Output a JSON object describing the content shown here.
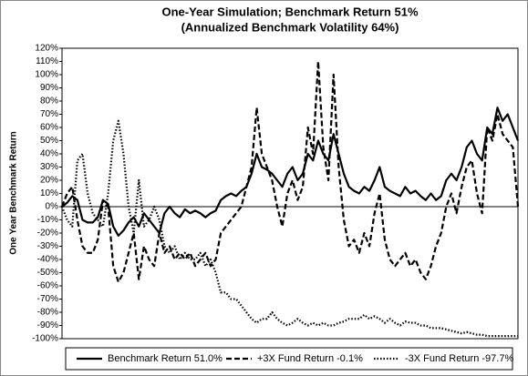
{
  "chart_data": {
    "type": "line",
    "title": "One-Year Simulation; Benchmark Return 51%",
    "subtitle": "(Annualized Benchmark Volatility 64%)",
    "y_label": "One Year Benchmark Return",
    "ylim": [
      -100,
      120
    ],
    "yticks": [
      {
        "value": -100,
        "label": "-100%"
      },
      {
        "value": -90,
        "label": "-90%"
      },
      {
        "value": -80,
        "label": "-80%"
      },
      {
        "value": -70,
        "label": "-70%"
      },
      {
        "value": -60,
        "label": "-60%"
      },
      {
        "value": -50,
        "label": "-50%"
      },
      {
        "value": -40,
        "label": "-40%"
      },
      {
        "value": -30,
        "label": "-30%"
      },
      {
        "value": -20,
        "label": "-20%"
      },
      {
        "value": -10,
        "label": "-10%"
      },
      {
        "value": 0,
        "label": "0%"
      },
      {
        "value": 10,
        "label": "10%"
      },
      {
        "value": 20,
        "label": "20%"
      },
      {
        "value": 30,
        "label": "30%"
      },
      {
        "value": 40,
        "label": "40%"
      },
      {
        "value": 50,
        "label": "50%"
      },
      {
        "value": 60,
        "label": "60%"
      },
      {
        "value": 70,
        "label": "70%"
      },
      {
        "value": 80,
        "label": "80%"
      },
      {
        "value": 90,
        "label": "90%"
      },
      {
        "value": 100,
        "label": "100%"
      },
      {
        "value": 110,
        "label": "110%"
      },
      {
        "value": 120,
        "label": "120%"
      }
    ],
    "legend": "bottom",
    "series": [
      {
        "name": "Benchmark Return 51.0%",
        "color": "#000000",
        "style": "solid",
        "values": [
          0,
          3,
          8,
          5,
          -10,
          -12,
          -12,
          -8,
          5,
          2,
          -15,
          -22,
          -18,
          -12,
          -8,
          -15,
          -5,
          -10,
          -15,
          -20,
          -5,
          0,
          -5,
          -8,
          -2,
          -5,
          -3,
          -5,
          -8,
          -5,
          -3,
          5,
          8,
          10,
          8,
          12,
          15,
          25,
          40,
          30,
          28,
          25,
          20,
          15,
          25,
          30,
          20,
          25,
          40,
          35,
          50,
          40,
          35,
          55,
          40,
          25,
          15,
          12,
          10,
          15,
          12,
          20,
          30,
          15,
          12,
          10,
          8,
          15,
          10,
          12,
          8,
          5,
          10,
          5,
          8,
          20,
          25,
          20,
          30,
          45,
          50,
          40,
          35,
          60,
          55,
          75,
          65,
          70,
          60,
          50
        ]
      },
      {
        "name": "+3X Fund Return -0.1%",
        "color": "#000000",
        "style": "dashed",
        "values": [
          0,
          10,
          15,
          -10,
          -30,
          -35,
          -35,
          -25,
          5,
          0,
          -45,
          -57,
          -50,
          -35,
          -20,
          -55,
          -30,
          -40,
          -45,
          -20,
          -35,
          -30,
          -40,
          -35,
          -40,
          -35,
          -45,
          -40,
          -35,
          -45,
          -40,
          -20,
          -15,
          -10,
          -5,
          0,
          15,
          30,
          75,
          40,
          30,
          20,
          0,
          -15,
          10,
          20,
          5,
          15,
          60,
          40,
          110,
          45,
          20,
          100,
          30,
          -10,
          -30,
          -25,
          -35,
          -20,
          -30,
          -5,
          10,
          -25,
          -40,
          -45,
          -40,
          -35,
          -45,
          -40,
          -50,
          -55,
          -45,
          -30,
          -20,
          0,
          10,
          -5,
          15,
          30,
          35,
          10,
          -5,
          60,
          50,
          70,
          55,
          50,
          45,
          0
        ]
      },
      {
        "name": "-3X Fund Return -97.7%",
        "color": "#000000",
        "style": "dotted",
        "values": [
          0,
          -10,
          -15,
          35,
          40,
          10,
          -5,
          -10,
          -15,
          10,
          50,
          65,
          40,
          0,
          -20,
          20,
          -15,
          -10,
          0,
          -10,
          -30,
          -35,
          -30,
          -40,
          -35,
          -40,
          -40,
          -35,
          -45,
          -40,
          -50,
          -65,
          -65,
          -70,
          -70,
          -75,
          -80,
          -85,
          -88,
          -85,
          -85,
          -80,
          -85,
          -88,
          -90,
          -88,
          -85,
          -88,
          -90,
          -88,
          -90,
          -88,
          -90,
          -90,
          -88,
          -87,
          -85,
          -85,
          -85,
          -82,
          -85,
          -83,
          -85,
          -88,
          -85,
          -88,
          -90,
          -87,
          -88,
          -88,
          -90,
          -90,
          -92,
          -92,
          -92,
          -93,
          -94,
          -95,
          -96,
          -95,
          -96,
          -97,
          -97,
          -98,
          -98,
          -98,
          -98,
          -98,
          -98,
          -98
        ]
      }
    ]
  }
}
